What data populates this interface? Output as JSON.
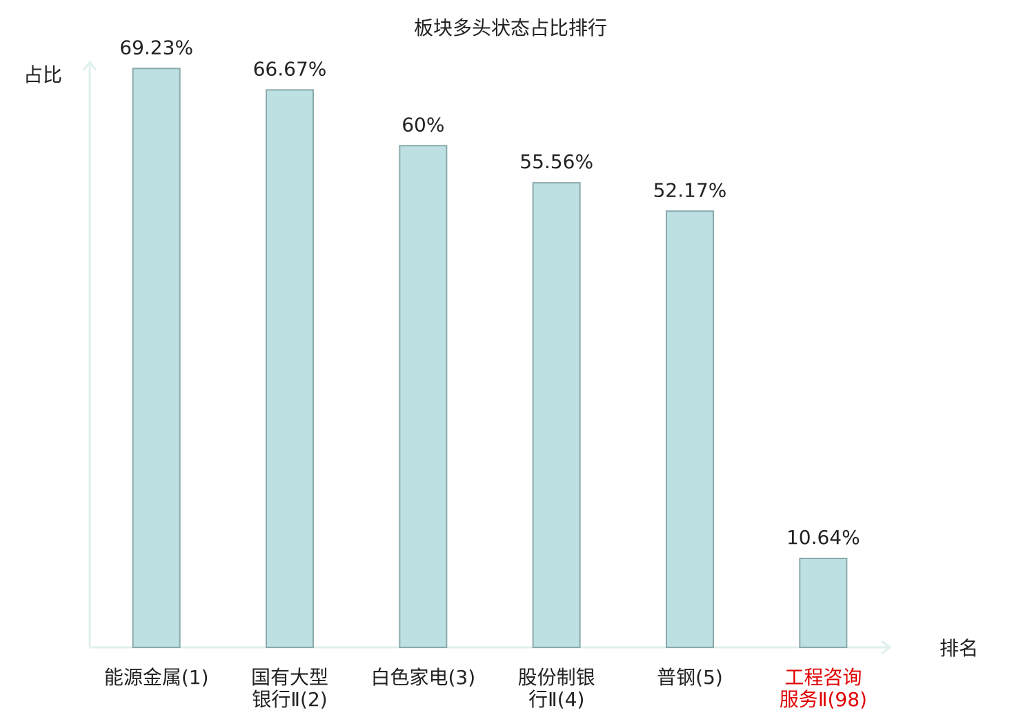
{
  "chart_data": {
    "type": "bar",
    "title": "板块多头状态占比排行",
    "y_label": "占比",
    "x_label": "排名",
    "categories": [
      "能源金属(1)",
      "国有大型\n银行Ⅱ(2)",
      "白色家电(3)",
      "股份制银\n行Ⅱ(4)",
      "普钢(5)",
      "工程咨询\n服务Ⅱ(98)"
    ],
    "category_colors": [
      "#222222",
      "#222222",
      "#222222",
      "#222222",
      "#222222",
      "#e00000"
    ],
    "values": [
      69.23,
      66.67,
      60,
      55.56,
      52.17,
      10.64
    ],
    "value_labels": [
      "69.23%",
      "66.67%",
      "60%",
      "55.56%",
      "52.17%",
      "10.64%"
    ],
    "color": "#bde0e3",
    "edge_color": "#8aa9ab",
    "axis_color": "#dff0ee",
    "ylim": [
      0,
      70
    ]
  }
}
